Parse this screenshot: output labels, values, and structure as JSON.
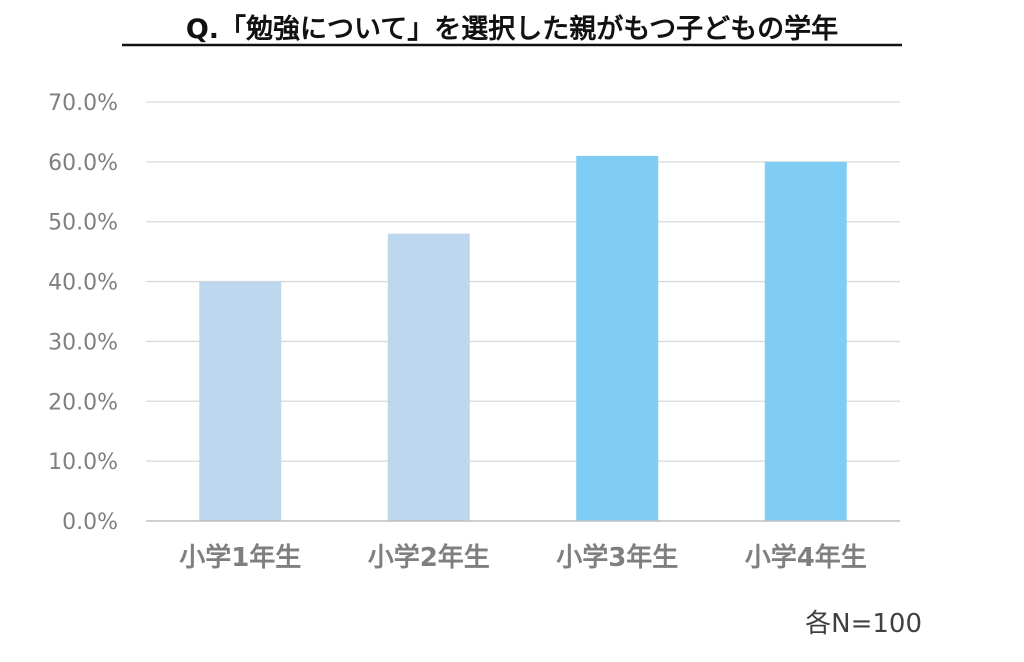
{
  "chart_data": {
    "type": "bar",
    "title": "Q.「勉強について」を選択した親がもつ子どもの学年",
    "categories": [
      "小学1年生",
      "小学2年生",
      "小学3年生",
      "小学4年生"
    ],
    "values": [
      40.0,
      48.0,
      61.0,
      60.0
    ],
    "value_unit": "%",
    "ylim": [
      0,
      70
    ],
    "yticks": [
      "0.0%",
      "10.0%",
      "20.0%",
      "30.0%",
      "40.0%",
      "50.0%",
      "60.0%",
      "70.0%"
    ],
    "xlabel": "",
    "ylabel": "",
    "grid": true,
    "bar_colors": [
      "#bdd7ee",
      "#bdd7ee",
      "#7fcdf2",
      "#7fcdf2"
    ],
    "gridline_color": "#d9d9d9",
    "axis_color": "#bfbfbf",
    "note": "各N=100"
  }
}
